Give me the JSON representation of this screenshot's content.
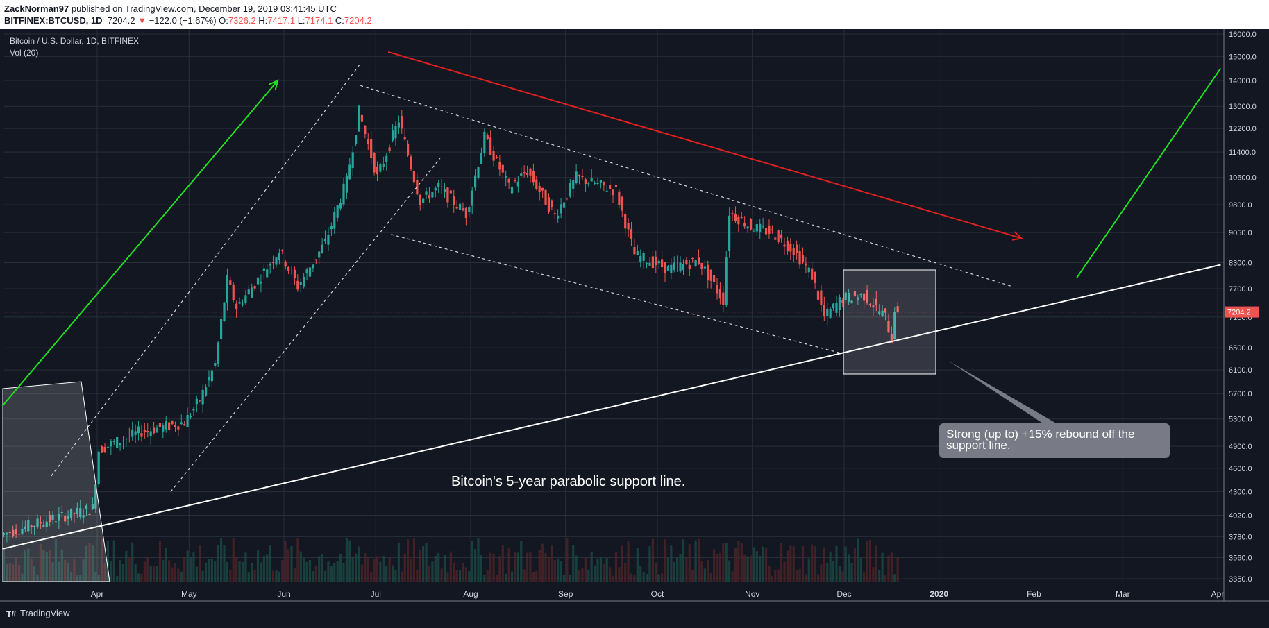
{
  "header": {
    "author": "ZackNorman97",
    "published_text": "published on TradingView.com, December 19, 2019 03:41:45 UTC",
    "symbol": "BITFINEX:BTCUSD, 1D",
    "last": "7204.2",
    "change": "−122.0 (−1.67%)",
    "o_label": "O:",
    "o_value": "7326.2",
    "h_label": "H:",
    "h_value": "7417.1",
    "l_label": "L:",
    "l_value": "7174.1",
    "c_label": "C:",
    "c_value": "7204.2"
  },
  "legend": {
    "title": "Bitcoin / U.S. Dollar, 1D, BITFINEX",
    "volume": "Vol (20)"
  },
  "annotations": {
    "support_text": "Bitcoin's 5-year parabolic support line.",
    "callout_text": "Strong (up to) +15% rebound off the support line."
  },
  "footer": {
    "brand": "TradingView"
  },
  "colors": {
    "background": "#131722",
    "up": "#26a69a",
    "down": "#ef5350",
    "grid": "#2a2e39",
    "trend_red": "#e0201f",
    "trend_green": "#22e022",
    "support": "#ffffff",
    "callout": "#787b86"
  },
  "chart_data": {
    "type": "candlestick",
    "title": "Bitcoin / U.S. Dollar, 1D, BITFINEX",
    "scale": "log",
    "ylim": [
      3350,
      16000
    ],
    "y_ticks": [
      "16000.0",
      "15000.0",
      "14000.0",
      "13000.0",
      "12200.0",
      "11400.0",
      "10600.0",
      "9800.0",
      "9050.0",
      "8300.0",
      "7700.0",
      "7100.0",
      "6500.0",
      "6100.0",
      "5700.0",
      "5300.0",
      "4900.0",
      "4600.0",
      "4300.0",
      "4020.0",
      "3780.0",
      "3560.0",
      "3350.0"
    ],
    "x_ticks": [
      "Apr",
      "May",
      "Jun",
      "Jul",
      "Aug",
      "Sep",
      "Oct",
      "Nov",
      "Dec",
      "2020",
      "Feb",
      "Mar",
      "Apr"
    ],
    "last_price_label": "7204.2",
    "last_price": 7204.2,
    "price_path": [
      [
        "2019-03-01",
        3800
      ],
      [
        "2019-03-15",
        3950
      ],
      [
        "2019-03-31",
        4100
      ],
      [
        "2019-04-02",
        4850
      ],
      [
        "2019-04-15",
        5100
      ],
      [
        "2019-04-30",
        5250
      ],
      [
        "2019-05-05",
        5600
      ],
      [
        "2019-05-10",
        6200
      ],
      [
        "2019-05-14",
        7900
      ],
      [
        "2019-05-17",
        7300
      ],
      [
        "2019-05-25",
        8000
      ],
      [
        "2019-05-31",
        8600
      ],
      [
        "2019-06-06",
        7750
      ],
      [
        "2019-06-15",
        8800
      ],
      [
        "2019-06-22",
        10500
      ],
      [
        "2019-06-26",
        12800
      ],
      [
        "2019-07-02",
        10600
      ],
      [
        "2019-07-09",
        12500
      ],
      [
        "2019-07-16",
        9900
      ],
      [
        "2019-07-22",
        10300
      ],
      [
        "2019-07-31",
        9550
      ],
      [
        "2019-08-06",
        11900
      ],
      [
        "2019-08-14",
        10300
      ],
      [
        "2019-08-20",
        10800
      ],
      [
        "2019-08-29",
        9500
      ],
      [
        "2019-09-05",
        10600
      ],
      [
        "2019-09-18",
        10200
      ],
      [
        "2019-09-24",
        8500
      ],
      [
        "2019-10-05",
        8150
      ],
      [
        "2019-10-15",
        8350
      ],
      [
        "2019-10-23",
        7450
      ],
      [
        "2019-10-25",
        9600
      ],
      [
        "2019-11-01",
        9200
      ],
      [
        "2019-11-08",
        9050
      ],
      [
        "2019-11-15",
        8600
      ],
      [
        "2019-11-21",
        8000
      ],
      [
        "2019-11-25",
        7100
      ],
      [
        "2019-12-01",
        7500
      ],
      [
        "2019-12-08",
        7550
      ],
      [
        "2019-12-15",
        7100
      ],
      [
        "2019-12-17",
        6650
      ],
      [
        "2019-12-18",
        7300
      ],
      [
        "2019-12-19",
        7204
      ]
    ],
    "drawings": [
      {
        "name": "green-uptrend-arrow",
        "color": "green",
        "from": [
          "2019-03-01",
          5500
        ],
        "to": [
          "2019-05-30",
          14000
        ]
      },
      {
        "name": "red-downtrend-arrow",
        "color": "red",
        "from": [
          "2019-07-05",
          15200
        ],
        "to": [
          "2020-01-28",
          8900
        ]
      },
      {
        "name": "green-projection-line",
        "color": "green",
        "from": [
          "2020-02-15",
          7950
        ],
        "to": [
          "2020-04-02",
          14500
        ]
      },
      {
        "name": "support-line",
        "color": "white",
        "from": [
          "2019-03-01",
          3650
        ],
        "to": [
          "2020-04-02",
          8250
        ]
      }
    ],
    "annotations": [
      "Bitcoin's 5-year parabolic support line.",
      "Strong (up to) +15% rebound off the support line."
    ]
  }
}
